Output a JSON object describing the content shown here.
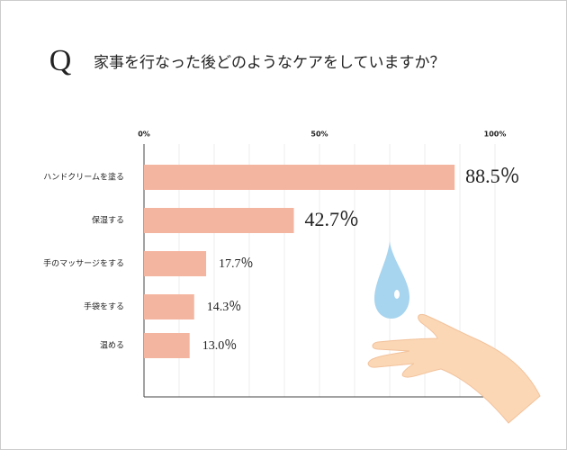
{
  "chart_data": {
    "type": "bar",
    "orientation": "horizontal",
    "title_mark": "Q",
    "title": "家事を行なった後どのようなケアをしていますか？",
    "categories": [
      "ハンドクリームを塗る",
      "保湿する",
      "手のマッサージをする",
      "手袋をする",
      "温める"
    ],
    "values": [
      88.5,
      42.7,
      17.7,
      14.3,
      13.0
    ],
    "value_labels": [
      "88.5％",
      "42.7％",
      "17.7％",
      "14.3％",
      "13.0％"
    ],
    "color": "#f4b5a0",
    "xlim": [
      0,
      100
    ],
    "xticks": [
      {
        "value": 0,
        "label": "0%"
      },
      {
        "value": 50,
        "label": "50%"
      },
      {
        "value": 100,
        "label": "100%"
      }
    ],
    "minor_xticks": [
      10,
      20,
      30,
      40,
      60,
      70,
      80,
      90
    ],
    "grid": true
  }
}
